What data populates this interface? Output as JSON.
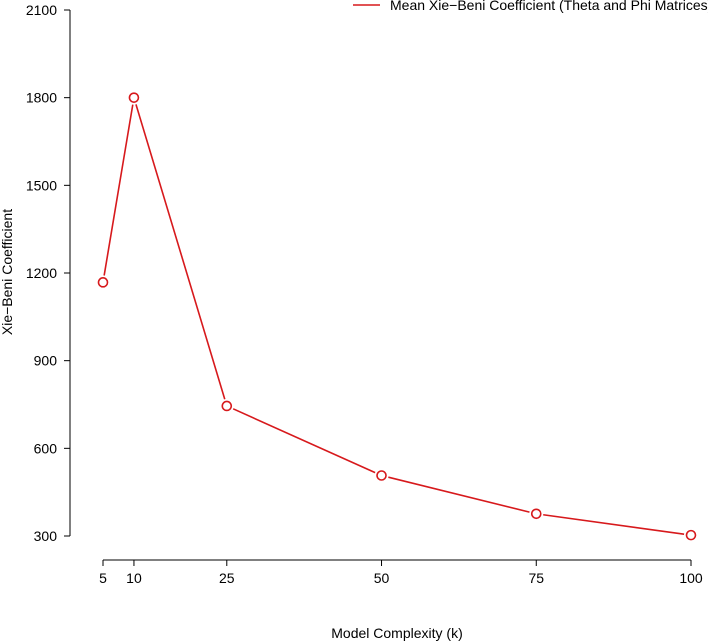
{
  "chart_data": {
    "type": "line",
    "title": "",
    "xlabel": "Model Complexity (k)",
    "ylabel": "Xie−Beni Coefficient",
    "x": [
      5,
      10,
      25,
      50,
      75,
      100
    ],
    "xticks": [
      5,
      10,
      25,
      50,
      75,
      100
    ],
    "xlim": [
      5,
      100
    ],
    "yticks": [
      300,
      600,
      900,
      1200,
      1500,
      1800,
      2100
    ],
    "ylim": [
      300,
      2100
    ],
    "grid": false,
    "legend_position": "top-right",
    "series": [
      {
        "name": "Mean Xie−Beni Coefficient (Theta and Phi Matrices)",
        "color": "#d7191c",
        "values": [
          1168,
          1800,
          745,
          507,
          376,
          303
        ]
      }
    ]
  }
}
